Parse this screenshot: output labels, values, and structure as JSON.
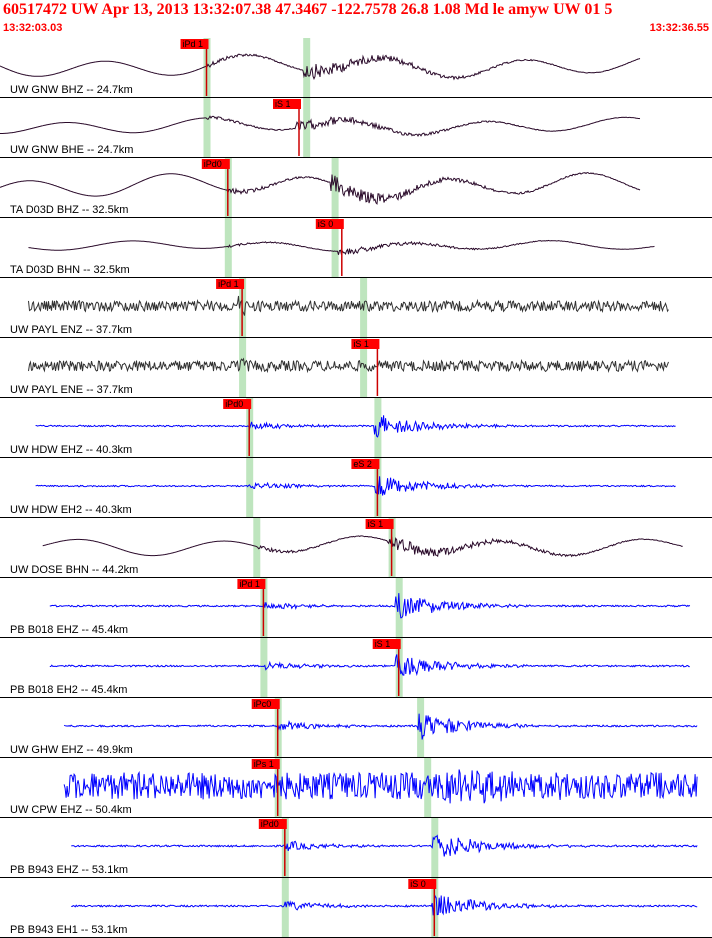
{
  "header": {
    "title": "60517472 UW Apr 13, 2013 13:32:07.38   47.3467 -122.7578 26.8 1.08 Md le amyw UW 01   5",
    "start_time": "13:32:03.03",
    "end_time": "13:32:36.55"
  },
  "chart_data": {
    "type": "seismogram",
    "event": {
      "id": "60517472",
      "network": "UW",
      "origin": "Apr 13, 2013 13:32:07.38",
      "lat": 47.3467,
      "lon": -122.7578,
      "depth_km": 26.8,
      "magnitude": 1.08,
      "mag_type": "Md"
    },
    "x": {
      "start": "13:32:03.03",
      "end": "13:32:36.55"
    },
    "traces": [
      {
        "label": "UW GNW BHZ -- 24.7km",
        "color": "#2a0a2a",
        "style": "smooth",
        "start": 0.0,
        "end": 0.9,
        "pick": {
          "text": "iPd 1",
          "t": 0.29
        },
        "green": [
          0.29,
          0.43
        ],
        "s_t": 0.43,
        "amp": 0.55
      },
      {
        "label": "UW GNW BHE -- 24.7km",
        "color": "#2a0a2a",
        "style": "smooth",
        "start": 0.0,
        "end": 0.9,
        "pick": {
          "text": "iS 1",
          "t": 0.42
        },
        "green": [
          0.29,
          0.43
        ],
        "s_t": 0.42,
        "amp": 0.4
      },
      {
        "label": "TA D03D BHZ -- 32.5km",
        "color": "#2a0a2a",
        "style": "smooth",
        "start": 0.0,
        "end": 0.9,
        "pick": {
          "text": "iPd0",
          "t": 0.32
        },
        "green": [
          0.32,
          0.47
        ],
        "s_t": 0.47,
        "amp": 0.6
      },
      {
        "label": "TA D03D BHN -- 32.5km",
        "color": "#2a0a2a",
        "style": "smooth",
        "start": 0.04,
        "end": 0.92,
        "pick": {
          "text": "iS 0",
          "t": 0.48
        },
        "green": [
          0.32,
          0.47
        ],
        "s_t": 0.48,
        "amp": 0.25
      },
      {
        "label": "UW PAYL ENZ -- 37.7km",
        "color": "#333333",
        "style": "noise",
        "start": 0.04,
        "end": 0.94,
        "pick": {
          "text": "iPd 1",
          "t": 0.34
        },
        "green": [
          0.34,
          0.51
        ],
        "s_t": 0.51,
        "amp": 0.28
      },
      {
        "label": "UW PAYL ENE -- 37.7km",
        "color": "#333333",
        "style": "noise",
        "start": 0.04,
        "end": 0.94,
        "pick": {
          "text": "iS 1",
          "t": 0.53
        },
        "green": [
          0.34,
          0.51
        ],
        "s_t": 0.53,
        "amp": 0.28
      },
      {
        "label": "UW HDW EHZ -- 40.3km",
        "color": "#0000ff",
        "style": "event",
        "start": 0.05,
        "end": 0.95,
        "pick": {
          "text": "iPd0",
          "t": 0.35
        },
        "green": [
          0.35,
          0.53
        ],
        "s_t": 0.53,
        "amp": 0.5
      },
      {
        "label": "UW HDW EH2 -- 40.3km",
        "color": "#0000ff",
        "style": "event",
        "start": 0.05,
        "end": 0.95,
        "pick": {
          "text": "eS 2",
          "t": 0.53
        },
        "green": [
          0.35,
          0.53
        ],
        "s_t": 0.53,
        "amp": 0.5
      },
      {
        "label": "UW DOSE BHN -- 44.2km",
        "color": "#2a0a2a",
        "style": "smooth-event",
        "start": 0.06,
        "end": 0.96,
        "pick": {
          "text": "iS 1",
          "t": 0.55
        },
        "green": [
          0.36,
          0.55
        ],
        "s_t": 0.55,
        "amp": 0.45
      },
      {
        "label": "PB B018 EHZ -- 45.4km",
        "color": "#0000ff",
        "style": "event",
        "start": 0.07,
        "end": 0.97,
        "pick": {
          "text": "iPd 1",
          "t": 0.37
        },
        "green": [
          0.37,
          0.56
        ],
        "s_t": 0.56,
        "amp": 0.55
      },
      {
        "label": "PB B018 EH2 -- 45.4km",
        "color": "#0000ff",
        "style": "event",
        "start": 0.07,
        "end": 0.97,
        "pick": {
          "text": "iS 1",
          "t": 0.56
        },
        "green": [
          0.37,
          0.56
        ],
        "s_t": 0.56,
        "amp": 0.55
      },
      {
        "label": "UW GHW EHZ -- 49.9km",
        "color": "#0000ff",
        "style": "event",
        "start": 0.09,
        "end": 0.98,
        "pick": {
          "text": "iPc0",
          "t": 0.39
        },
        "green": [
          0.39,
          0.59
        ],
        "s_t": 0.59,
        "amp": 0.6
      },
      {
        "label": "UW CPW EHZ -- 50.4km",
        "color": "#0000ff",
        "style": "noise-event",
        "start": 0.09,
        "end": 0.98,
        "pick": {
          "text": "iPs 1",
          "t": 0.39
        },
        "green": [
          0.39,
          0.6
        ],
        "s_t": 0.6,
        "amp": 0.7
      },
      {
        "label": "PB B943 EHZ -- 53.1km",
        "color": "#0000ff",
        "style": "event",
        "start": 0.1,
        "end": 0.98,
        "pick": {
          "text": "iPd0",
          "t": 0.4
        },
        "green": [
          0.4,
          0.61
        ],
        "s_t": 0.61,
        "amp": 0.6
      },
      {
        "label": "PB B943 EH1 -- 53.1km",
        "color": "#0000ff",
        "style": "event",
        "start": 0.1,
        "end": 0.98,
        "pick": {
          "text": "iS 0",
          "t": 0.61
        },
        "green": [
          0.4,
          0.61
        ],
        "s_t": 0.61,
        "amp": 0.6
      }
    ]
  }
}
